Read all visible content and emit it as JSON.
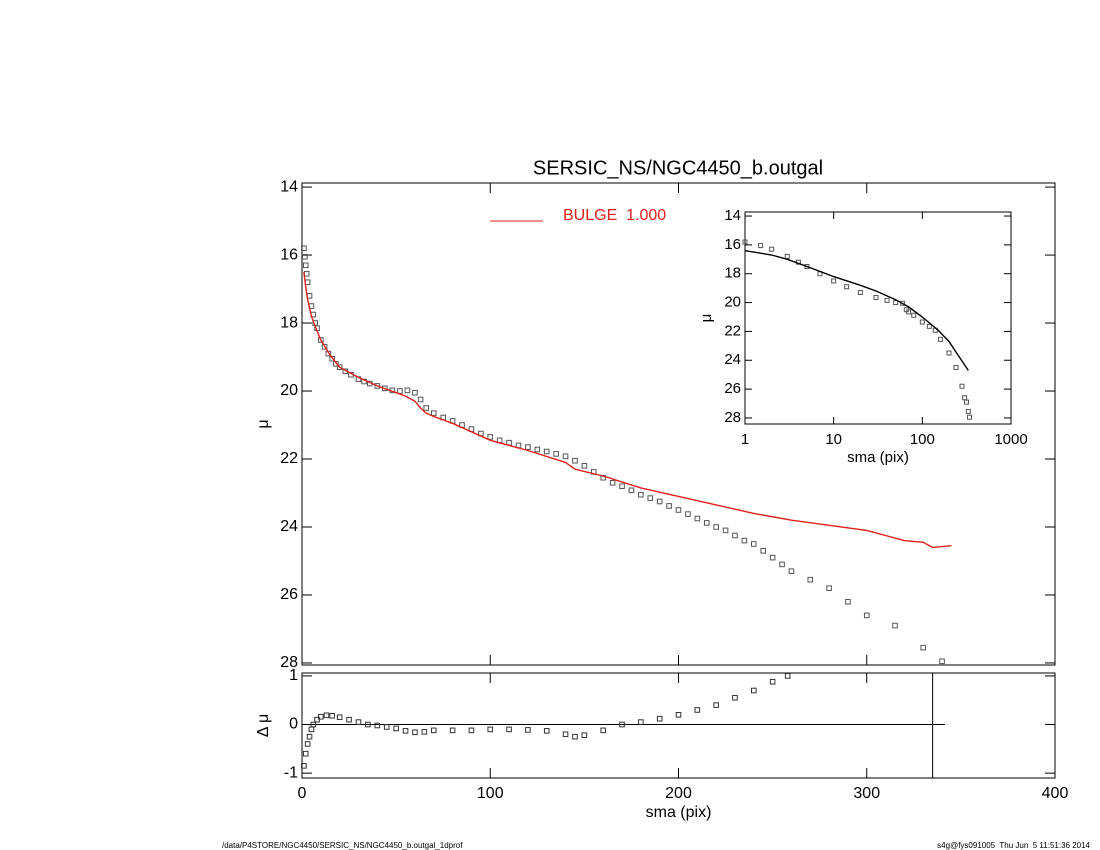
{
  "chart_data": [
    {
      "type": "scatter",
      "title": "SERSIC_NS/NGC4450_b.outgal",
      "ylabel": "μ",
      "xlim": [
        0,
        400
      ],
      "xticks": [
        0,
        100,
        200,
        300,
        400
      ],
      "xtick_labels": false,
      "ylim": [
        28.06,
        13.88
      ],
      "yticks": [
        14,
        16,
        18,
        20,
        22,
        24,
        26,
        28
      ],
      "series": [
        {
          "mode": "markers",
          "color": "#555555",
          "x": [
            1,
            1.5,
            2,
            2.5,
            3,
            4,
            5,
            6,
            7,
            8,
            10,
            12,
            14,
            16,
            18,
            20,
            23,
            26,
            30,
            33,
            36,
            40,
            44,
            48,
            52,
            56,
            60,
            63,
            66,
            70,
            75,
            80,
            85,
            90,
            95,
            100,
            105,
            110,
            115,
            120,
            125,
            130,
            135,
            140,
            145,
            150,
            155,
            160,
            165,
            170,
            175,
            180,
            185,
            190,
            195,
            200,
            205,
            210,
            215,
            220,
            225,
            230,
            235,
            240,
            245,
            250,
            255,
            260,
            270,
            280,
            290,
            300,
            315,
            330,
            340
          ],
          "values": [
            15.8,
            16.05,
            16.3,
            16.55,
            16.8,
            17.2,
            17.5,
            17.75,
            18.0,
            18.15,
            18.5,
            18.7,
            18.9,
            19.05,
            19.2,
            19.3,
            19.42,
            19.52,
            19.65,
            19.72,
            19.78,
            19.85,
            19.92,
            19.98,
            20.0,
            19.98,
            20.05,
            20.25,
            20.5,
            20.65,
            20.78,
            20.88,
            21.0,
            21.12,
            21.25,
            21.35,
            21.45,
            21.52,
            21.6,
            21.65,
            21.72,
            21.78,
            21.85,
            21.92,
            22.05,
            22.2,
            22.38,
            22.55,
            22.7,
            22.8,
            22.92,
            23.05,
            23.15,
            23.25,
            23.38,
            23.5,
            23.62,
            23.75,
            23.88,
            24.0,
            24.1,
            24.25,
            24.4,
            24.5,
            24.7,
            24.9,
            25.1,
            25.3,
            25.55,
            25.8,
            26.2,
            26.6,
            26.9,
            27.55,
            27.95
          ]
        },
        {
          "mode": "line",
          "name": "BULGE  1.000",
          "color": "#e0201c",
          "x": [
            1,
            2,
            3,
            5,
            7,
            10,
            15,
            20,
            30,
            40,
            50,
            55,
            60,
            63,
            66,
            70,
            80,
            100,
            120,
            140,
            145,
            160,
            180,
            200,
            220,
            240,
            260,
            280,
            300,
            320,
            330,
            335,
            345
          ],
          "values": [
            16.5,
            16.95,
            17.3,
            17.8,
            18.1,
            18.5,
            18.95,
            19.3,
            19.6,
            19.85,
            20.05,
            20.15,
            20.3,
            20.5,
            20.65,
            20.75,
            20.95,
            21.45,
            21.75,
            22.1,
            22.3,
            22.5,
            22.85,
            23.1,
            23.35,
            23.6,
            23.8,
            23.95,
            24.1,
            24.4,
            24.45,
            24.6,
            24.55
          ]
        }
      ]
    },
    {
      "type": "scatter",
      "ylabel": "Δ μ",
      "xlabel": "sma (pix)",
      "xlim": [
        0,
        400
      ],
      "xticks": [
        0,
        100,
        200,
        300,
        400
      ],
      "ylim": [
        -1.1,
        1.06
      ],
      "yticks": [
        -1,
        0,
        1
      ],
      "hline": 0,
      "vline": 335,
      "series": [
        {
          "mode": "markers",
          "color": "#333333",
          "x": [
            1,
            2,
            3,
            4,
            5,
            6,
            8,
            10,
            13,
            16,
            20,
            25,
            30,
            35,
            40,
            45,
            50,
            55,
            60,
            65,
            70,
            80,
            90,
            100,
            110,
            120,
            130,
            140,
            145,
            150,
            160,
            170,
            180,
            190,
            200,
            210,
            220,
            230,
            240,
            250,
            258
          ],
          "values": [
            -0.85,
            -0.6,
            -0.4,
            -0.25,
            -0.1,
            0.0,
            0.1,
            0.16,
            0.19,
            0.18,
            0.15,
            0.1,
            0.05,
            0.0,
            -0.02,
            -0.05,
            -0.08,
            -0.13,
            -0.16,
            -0.15,
            -0.12,
            -0.12,
            -0.12,
            -0.1,
            -0.1,
            -0.11,
            -0.13,
            -0.2,
            -0.25,
            -0.22,
            -0.12,
            0.0,
            0.05,
            0.12,
            0.2,
            0.3,
            0.4,
            0.55,
            0.7,
            0.88,
            1.0
          ]
        }
      ]
    },
    {
      "type": "scatter",
      "ylabel": "μ",
      "xlabel": "sma (pix)",
      "xscale": "log",
      "xlim": [
        1,
        1000
      ],
      "xticks": [
        1,
        10,
        100,
        1000
      ],
      "ylim": [
        28.42,
        13.72
      ],
      "yticks": [
        14,
        16,
        18,
        20,
        22,
        24,
        26,
        28
      ],
      "series": [
        {
          "mode": "markers",
          "color": "#555555",
          "x": [
            1,
            1.5,
            2,
            3,
            4,
            5,
            7,
            10,
            14,
            20,
            30,
            40,
            50,
            60,
            66,
            70,
            80,
            100,
            120,
            140,
            160,
            200,
            240,
            280,
            300,
            315,
            330,
            340
          ],
          "values": [
            15.8,
            16.05,
            16.3,
            16.8,
            17.2,
            17.5,
            18.0,
            18.5,
            18.9,
            19.3,
            19.65,
            19.85,
            20.0,
            20.05,
            20.5,
            20.65,
            20.88,
            21.35,
            21.65,
            21.92,
            22.55,
            23.5,
            24.5,
            25.8,
            26.6,
            26.9,
            27.55,
            27.95
          ]
        },
        {
          "mode": "line",
          "color": "#000000",
          "x": [
            1,
            2,
            3,
            5,
            10,
            20,
            30,
            50,
            70,
            100,
            150,
            200,
            250,
            330
          ],
          "values": [
            16.4,
            16.7,
            17.0,
            17.5,
            18.2,
            18.8,
            19.2,
            19.8,
            20.3,
            21.0,
            21.9,
            22.7,
            23.6,
            24.7
          ]
        }
      ]
    }
  ],
  "footer": {
    "left": "/data/P4STORE/NGC4450/SERSIC_NS/NGC4450_b.outgal_1dprof",
    "right": "s4g@fys091005  Thu Jun  5 11:51:36 2014"
  }
}
